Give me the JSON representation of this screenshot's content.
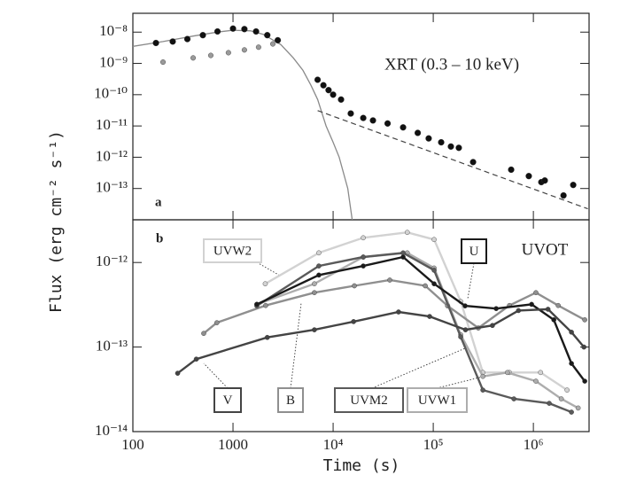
{
  "chart_data": [
    {
      "type": "scatter",
      "log": true,
      "panel_label": "a",
      "annotation": "XRT (0.3 – 10 keV)",
      "xlim": [
        100,
        3600000
      ],
      "ylim": [
        1e-14,
        4e-08
      ],
      "yticks": [
        {
          "value": 1e-08,
          "label": "10⁻⁸"
        },
        {
          "value": 1e-09,
          "label": "10⁻⁹"
        },
        {
          "value": 1e-10,
          "label": "10⁻¹⁰"
        },
        {
          "value": 1e-11,
          "label": "10⁻¹¹"
        },
        {
          "value": 1e-12,
          "label": "10⁻¹²"
        },
        {
          "value": 1e-13,
          "label": "10⁻¹³"
        }
      ],
      "series": [
        {
          "mark": "line",
          "color": "#8a8a8a",
          "x": [
            100,
            200,
            400,
            700,
            1000,
            1500,
            2000,
            3000,
            4000,
            5000,
            6000,
            7000,
            8500,
            10000,
            11500,
            14000,
            15500
          ],
          "values": [
            3.5e-09,
            5e-09,
            7.5e-09,
            1e-08,
            1.15e-08,
            1.1e-08,
            8.5e-09,
            4e-09,
            1.5e-09,
            6e-10,
            2e-10,
            7e-11,
            1e-11,
            3e-12,
            1e-12,
            1e-13,
            1e-14
          ]
        },
        {
          "mark": "dashed",
          "color": "#444444",
          "x": [
            7000,
            3500000
          ],
          "values": [
            3.1e-11,
            2.24e-14
          ]
        },
        {
          "mark": "points",
          "color": "#9a9a9a",
          "x": [
            200,
            400,
            600,
            900,
            1300,
            1800,
            2500
          ],
          "values": [
            1.1e-09,
            1.5e-09,
            1.8e-09,
            2.2e-09,
            2.7e-09,
            3.3e-09,
            4.2e-09
          ]
        },
        {
          "mark": "points",
          "color": "#111111",
          "x": [
            170,
            250,
            350,
            500,
            700,
            1000,
            1300,
            1700,
            2200,
            2800,
            7000,
            8000,
            9000,
            10000,
            12000,
            15000,
            20000,
            25000,
            35000,
            50000,
            70000,
            90000,
            120000,
            150000,
            180000,
            250000,
            600000,
            900000,
            1200000,
            1300000,
            2000000,
            2500000
          ],
          "values": [
            4.5e-09,
            5e-09,
            6e-09,
            8e-09,
            1.05e-08,
            1.3e-08,
            1.25e-08,
            1.05e-08,
            8e-09,
            5.5e-09,
            3e-10,
            2e-10,
            1.4e-10,
            1e-10,
            7e-11,
            2.5e-11,
            1.8e-11,
            1.5e-11,
            1.2e-11,
            9e-12,
            6e-12,
            4e-12,
            3e-12,
            2.2e-12,
            2e-12,
            7e-13,
            4e-13,
            2.5e-13,
            1.6e-13,
            1.8e-13,
            6e-14,
            1.3e-13
          ]
        }
      ]
    },
    {
      "type": "line",
      "log": true,
      "panel_label": "b",
      "annotation": "UVOT",
      "xlabel": "Time (s)",
      "ylabel": "Flux (erg cm⁻² s⁻¹)",
      "xlim": [
        100,
        3600000
      ],
      "ylim": [
        1e-14,
        3.2e-12
      ],
      "xticks": [
        100,
        1000,
        {
          "value": 10000,
          "label": "10⁴"
        },
        {
          "value": 100000,
          "label": "10⁵"
        },
        {
          "value": 1000000,
          "label": "10⁶"
        }
      ],
      "yticks": [
        {
          "value": 1e-12,
          "label": "10⁻¹²"
        },
        {
          "value": 1e-13,
          "label": "10⁻¹³"
        },
        {
          "value": 1e-14,
          "label": "10⁻¹⁴"
        }
      ],
      "series": [
        {
          "name": "UVW2",
          "color": "#d2d2d2",
          "x": [
            2100,
            7200,
            20000,
            55000,
            102000,
            188000,
            313000,
            577000,
            1180000,
            2170000
          ],
          "values": [
            5.6e-13,
            1.3e-12,
            1.96e-12,
            2.27e-12,
            1.87e-12,
            3.46e-13,
            5e-14,
            5e-14,
            5e-14,
            3.1e-14
          ]
        },
        {
          "name": "UVW1",
          "color": "#adadad",
          "x": [
            1730,
            6500,
            20000,
            55000,
            102000,
            188000,
            313000,
            550000,
            1060000,
            1900000,
            2800000
          ],
          "values": [
            3.2e-13,
            5.6e-13,
            1.16e-12,
            1.3e-12,
            8.6e-13,
            1.4e-13,
            4.5e-14,
            5e-14,
            3.95e-14,
            2.44e-14,
            1.9e-14
          ]
        },
        {
          "name": "B",
          "color": "#8f8f8f",
          "x": [
            510,
            690,
            2120,
            6500,
            16300,
            36800,
            83200,
            139000,
            282000,
            577000,
            1060000,
            1770000,
            3260000
          ],
          "values": [
            1.45e-13,
            1.94e-13,
            3.1e-13,
            4.4e-13,
            5.3e-13,
            6.2e-13,
            5.3e-13,
            3.07e-13,
            1.68e-13,
            3.1e-13,
            4.4e-13,
            3.1e-13,
            2.1e-13
          ]
        },
        {
          "name": "UVM2",
          "color": "#5a5a5a",
          "x": [
            1730,
            7200,
            20000,
            50000,
            102000,
            188000,
            313000,
            639000,
            1440000,
            2400000
          ],
          "values": [
            3.07e-13,
            9.1e-13,
            1.16e-12,
            1.3e-12,
            8.1e-13,
            1.32e-13,
            3.1e-14,
            2.44e-14,
            2.16e-14,
            1.7e-14
          ]
        },
        {
          "name": "U",
          "color": "#1a1a1a",
          "x": [
            1730,
            7200,
            20000,
            50000,
            102000,
            208000,
            425000,
            960000,
            1600000,
            2400000,
            3260000
          ],
          "values": [
            3.2e-13,
            7.1e-13,
            9.1e-13,
            1.16e-12,
            5.6e-13,
            3.07e-13,
            2.85e-13,
            3.2e-13,
            2.1e-13,
            6.4e-14,
            3.95e-14
          ]
        },
        {
          "name": "V",
          "color": "#444444",
          "x": [
            280,
            430,
            2200,
            6500,
            16000,
            45000,
            92000,
            210000,
            390000,
            710000,
            1400000,
            2400000,
            3200000
          ],
          "values": [
            4.9e-14,
            7.2e-14,
            1.3e-13,
            1.6e-13,
            2e-13,
            2.6e-13,
            2.3e-13,
            1.6e-13,
            1.8e-13,
            2.7e-13,
            2.8e-13,
            1.5e-13,
            1e-13
          ]
        }
      ]
    }
  ]
}
